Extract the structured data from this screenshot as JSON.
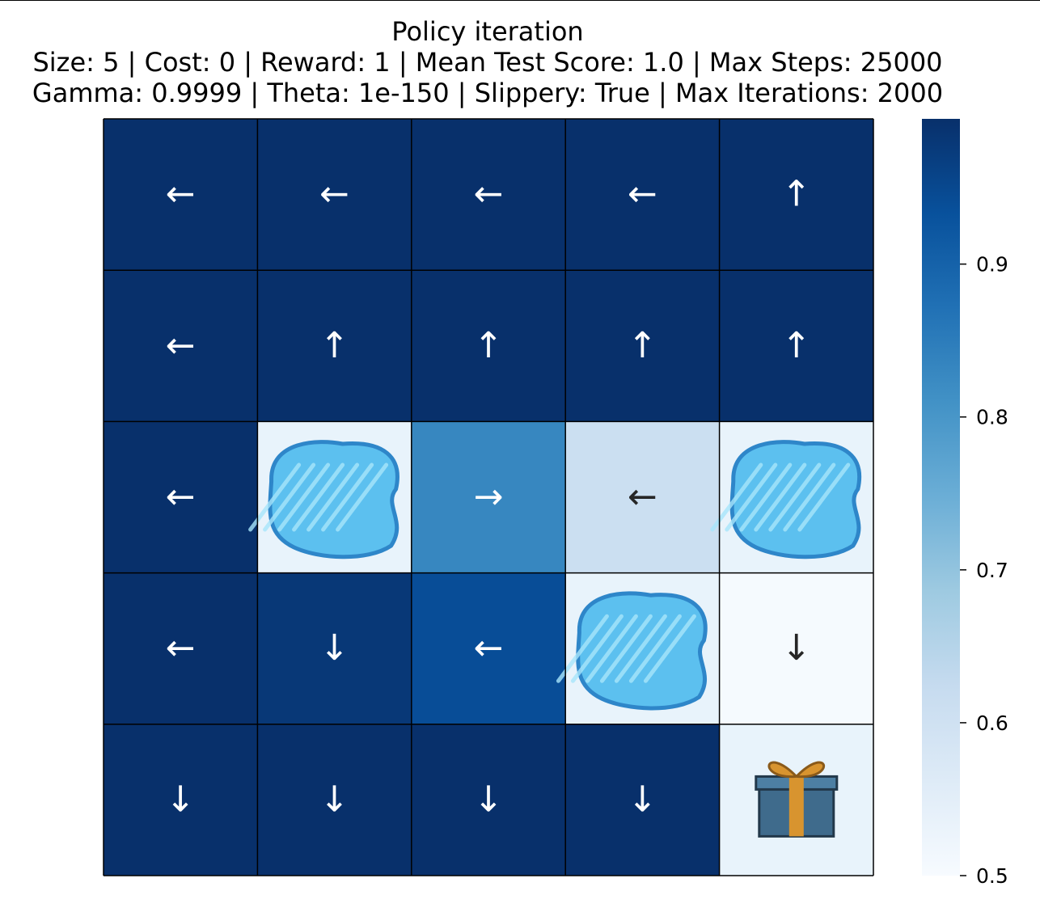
{
  "chart_data": {
    "type": "heatmap",
    "title": "Policy iteration",
    "subtitle_lines": [
      "Size: 5 | Cost: 0 | Reward: 1 | Mean Test Score: 1.0 | Max Steps: 25000",
      "Gamma: 0.9999 | Theta: 1e-150 | Slippery: True | Max Iterations: 2000"
    ],
    "grid_size": 5,
    "values": [
      [
        0.995,
        0.995,
        0.995,
        0.995,
        0.995
      ],
      [
        0.995,
        0.995,
        0.995,
        0.995,
        0.995
      ],
      [
        0.995,
        null,
        0.83,
        0.61,
        null
      ],
      [
        0.995,
        0.98,
        0.94,
        null,
        0.505
      ],
      [
        0.995,
        0.995,
        0.995,
        0.995,
        null
      ]
    ],
    "cells": [
      [
        "left",
        "left",
        "left",
        "left",
        "up"
      ],
      [
        "left",
        "up",
        "up",
        "up",
        "up"
      ],
      [
        "left",
        "hole",
        "right",
        "left",
        "hole"
      ],
      [
        "left",
        "down",
        "left",
        "hole",
        "down"
      ],
      [
        "down",
        "down",
        "down",
        "down",
        "goal"
      ]
    ],
    "arrow_glyphs": {
      "left": "←",
      "right": "→",
      "up": "↑",
      "down": "↓"
    },
    "colorbar": {
      "vmin": 0.5,
      "vmax": 0.995,
      "ticks": [
        0.5,
        0.6,
        0.7,
        0.8,
        0.9
      ],
      "tick_labels": [
        "0.5",
        "0.6",
        "0.7",
        "0.8",
        "0.9"
      ],
      "colormap": "Blues",
      "colormap_stops": [
        [
          0.0,
          "#f7fbff"
        ],
        [
          0.125,
          "#deebf7"
        ],
        [
          0.25,
          "#c6dbef"
        ],
        [
          0.375,
          "#9ecae1"
        ],
        [
          0.5,
          "#6baed6"
        ],
        [
          0.625,
          "#4292c6"
        ],
        [
          0.75,
          "#2171b5"
        ],
        [
          0.875,
          "#08519c"
        ],
        [
          1.0,
          "#08306b"
        ]
      ]
    },
    "icons": {
      "hole": "frozen-lake-hole-icon",
      "goal": "gift-box-goal-icon"
    },
    "colors": {
      "grid_line": "#000000",
      "text_light": "#ffffff",
      "text_dark": "#262626",
      "ice_outline": "#2e86c9",
      "ice_fill": "#5cc0ef",
      "ice_light": "#a8e6fb",
      "snow": "#e8f3fb",
      "gift_box": "#3f6b8c",
      "gift_ribbon": "#d8942f"
    }
  }
}
